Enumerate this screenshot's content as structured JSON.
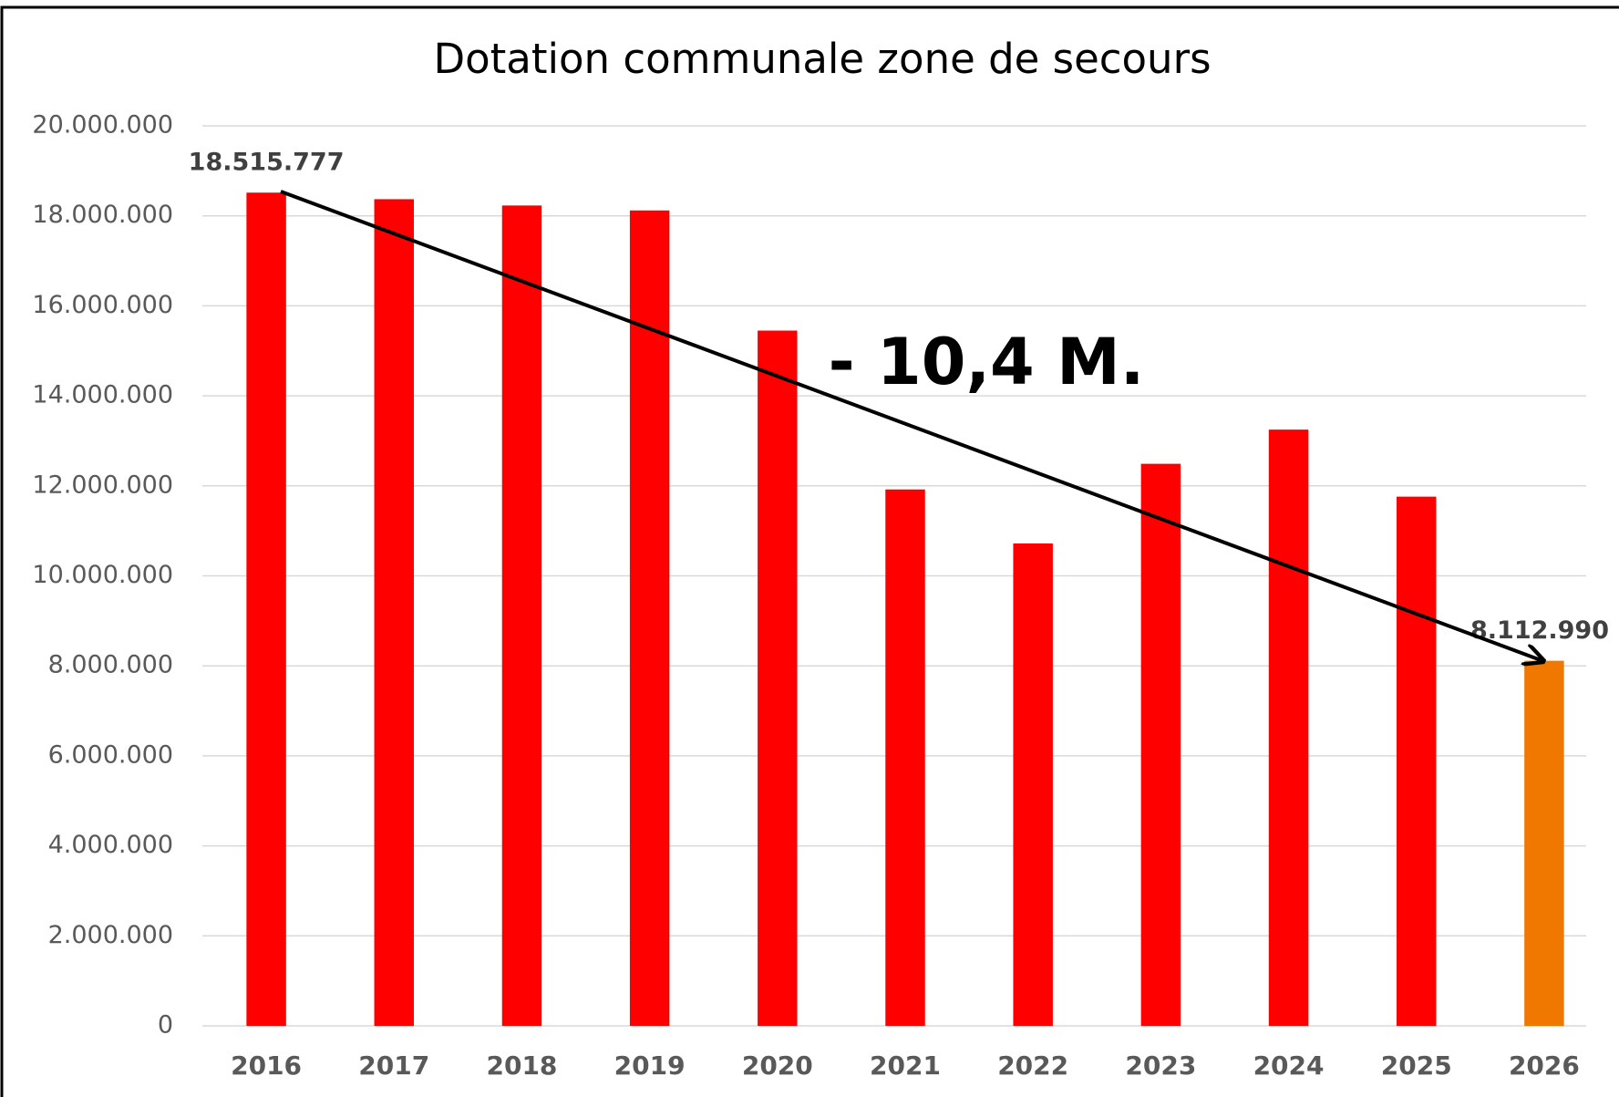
{
  "chart_data": {
    "type": "bar",
    "title": "Dotation communale zone de secours",
    "categories": [
      "2016",
      "2017",
      "2018",
      "2019",
      "2020",
      "2021",
      "2022",
      "2023",
      "2024",
      "2025",
      "2026"
    ],
    "values": [
      18515777,
      18370000,
      18230000,
      18120000,
      15450000,
      11920000,
      10720000,
      12490000,
      13250000,
      11760000,
      8112990
    ],
    "value_labels": [
      "18.515.777",
      null,
      null,
      null,
      null,
      null,
      null,
      null,
      null,
      null,
      "8.112.990"
    ],
    "colors": [
      "#ff0000",
      "#ff0000",
      "#ff0000",
      "#ff0000",
      "#ff0000",
      "#ff0000",
      "#ff0000",
      "#ff0000",
      "#ff0000",
      "#ff0000",
      "#f07800"
    ],
    "ylim": [
      0,
      20000000
    ],
    "yticks": [
      0,
      {
        "value": 2000000,
        "label": "2.000.000"
      },
      {
        "value": 4000000,
        "label": "4.000.000"
      },
      {
        "value": 6000000,
        "label": "6.000.000"
      },
      {
        "value": 8000000,
        "label": "8.000.000"
      },
      {
        "value": 10000000,
        "label": "10.000.000"
      },
      {
        "value": 12000000,
        "label": "12.000.000"
      },
      {
        "value": 14000000,
        "label": "14.000.000"
      },
      {
        "value": 16000000,
        "label": "16.000.000"
      },
      {
        "value": 18000000,
        "label": "18.000.000"
      },
      {
        "value": 20000000,
        "label": "20.000.000"
      }
    ],
    "grid": true,
    "annotation": "- 10,4 M."
  }
}
